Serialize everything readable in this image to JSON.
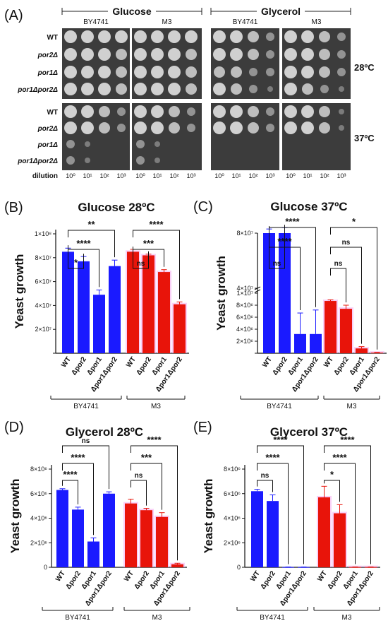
{
  "panel_a": {
    "label": "(A)",
    "medium_headers": [
      "Glucose",
      "Glycerol"
    ],
    "strain_headers": [
      "BY4741",
      "M3",
      "BY4741",
      "M3"
    ],
    "row_labels": [
      [
        "WT",
        false
      ],
      [
        "por2Δ",
        true
      ],
      [
        "por1Δ",
        true
      ],
      [
        "por1Δpor2Δ",
        true
      ],
      [
        "WT",
        false
      ],
      [
        "por2Δ",
        true
      ],
      [
        "por1Δ",
        true
      ],
      [
        "por1Δpor2Δ",
        true
      ]
    ],
    "temp_labels": [
      "28ºC",
      "37ºC"
    ],
    "dilution_label": "dilution",
    "dilutions": [
      "10⁰",
      "10¹",
      "10²",
      "10³"
    ],
    "growth_28": [
      [
        4,
        4,
        4,
        4,
        4,
        4,
        4,
        4,
        4,
        4,
        3,
        2,
        4,
        4,
        3,
        2
      ],
      [
        4,
        4,
        4,
        3,
        4,
        4,
        4,
        3,
        4,
        4,
        3,
        2,
        4,
        4,
        3,
        2
      ],
      [
        4,
        4,
        4,
        3,
        4,
        4,
        4,
        3,
        3,
        3,
        2,
        2,
        4,
        4,
        3,
        2
      ],
      [
        4,
        4,
        4,
        3,
        4,
        4,
        4,
        3,
        4,
        3,
        2,
        1,
        4,
        3,
        2,
        1
      ]
    ],
    "growth_37": [
      [
        4,
        4,
        3,
        2,
        4,
        4,
        3,
        2,
        4,
        4,
        3,
        2,
        4,
        4,
        3,
        1
      ],
      [
        4,
        4,
        3,
        2,
        4,
        4,
        3,
        2,
        4,
        4,
        3,
        2,
        4,
        4,
        3,
        1
      ],
      [
        2,
        1,
        0,
        0,
        2,
        1,
        0,
        0,
        0,
        0,
        0,
        0,
        0,
        0,
        0,
        0
      ],
      [
        2,
        1,
        0,
        0,
        2,
        1,
        0,
        0,
        0,
        0,
        0,
        0,
        0,
        0,
        0,
        0
      ]
    ]
  },
  "colors": {
    "by4741": "#1a1aff",
    "m3": "#e8140a",
    "m3_halo": "#f4a9f0",
    "star": "#111111"
  },
  "chart_data": [
    {
      "panel": "(B)",
      "type": "bar",
      "title": "Glucose 28ºC",
      "ylabel": "Yeast growth",
      "ylim": [
        0,
        100000000
      ],
      "yticks": [
        [
          "2×10⁷",
          20000000
        ],
        [
          "4×10⁷",
          40000000
        ],
        [
          "6×10⁷",
          60000000
        ],
        [
          "8×10⁷",
          80000000
        ],
        [
          "1×10⁸",
          100000000
        ]
      ],
      "categories": [
        "WT",
        "Δpor2",
        "Δpor1",
        "Δpor1Δpor2"
      ],
      "groups": [
        "BY4741",
        "M3"
      ],
      "series": [
        {
          "name": "BY4741",
          "values": [
            85000000,
            77000000,
            49000000,
            73000000
          ],
          "errors": [
            3000000,
            4000000,
            4000000,
            5000000
          ]
        },
        {
          "name": "M3",
          "values": [
            85000000,
            82000000,
            68000000,
            41000000
          ],
          "errors": [
            2000000,
            1000000,
            2000000,
            2000000
          ]
        }
      ],
      "comparisons": [
        {
          "group": 0,
          "to": 1,
          "label": "*"
        },
        {
          "group": 0,
          "to": 2,
          "label": "****"
        },
        {
          "group": 0,
          "to": 3,
          "label": "**"
        },
        {
          "group": 1,
          "to": 1,
          "label": "ns"
        },
        {
          "group": 1,
          "to": 2,
          "label": "***"
        },
        {
          "group": 1,
          "to": 3,
          "label": "****"
        }
      ]
    },
    {
      "panel": "(C)",
      "type": "bar",
      "title": "Glucose 37ºC",
      "ylabel": "Yeast growth",
      "ylim": [
        0,
        80000000
      ],
      "axis_break": {
        "low": [
          0,
          10000000
        ],
        "high": [
          40000000,
          80000000
        ]
      },
      "yticks": [
        [
          "2×10⁶",
          2000000
        ],
        [
          "4×10⁶",
          4000000
        ],
        [
          "6×10⁶",
          6000000
        ],
        [
          "8×10⁶",
          8000000
        ],
        [
          "1×10⁷",
          10000000
        ],
        [
          "4×10⁷",
          40000000
        ],
        [
          "8×10⁷",
          80000000
        ]
      ],
      "categories": [
        "WT",
        "Δpor2",
        "Δpor1",
        "Δpor1Δpor2"
      ],
      "groups": [
        "BY4741",
        "M3"
      ],
      "series": [
        {
          "name": "BY4741",
          "values": [
            80000000,
            80000000,
            3200000,
            3200000
          ],
          "errors": [
            3000000,
            4000000,
            3500000,
            4000000
          ]
        },
        {
          "name": "M3",
          "values": [
            8700000,
            7400000,
            800000,
            100000
          ],
          "errors": [
            200000,
            600000,
            300000,
            50000
          ]
        }
      ],
      "comparisons": [
        {
          "group": 0,
          "to": 1,
          "label": "ns"
        },
        {
          "group": 0,
          "to": 2,
          "label": "****"
        },
        {
          "group": 0,
          "to": 3,
          "label": "****"
        },
        {
          "group": 1,
          "to": 1,
          "label": "ns"
        },
        {
          "group": 1,
          "to": 2,
          "label": "ns"
        },
        {
          "group": 1,
          "to": 3,
          "label": "*"
        }
      ]
    },
    {
      "panel": "(D)",
      "type": "bar",
      "title": "Glycerol 28ºC",
      "ylabel": "Yeast growth",
      "ylim": [
        0,
        8000000
      ],
      "yticks": [
        [
          "0",
          0
        ],
        [
          "2×10⁶",
          2000000
        ],
        [
          "4×10⁶",
          4000000
        ],
        [
          "6×10⁶",
          6000000
        ],
        [
          "8×10⁶",
          8000000
        ]
      ],
      "categories": [
        "WT",
        "Δpor2",
        "Δpor1",
        "Δpor1Δpor2"
      ],
      "groups": [
        "BY4741",
        "M3"
      ],
      "series": [
        {
          "name": "BY4741",
          "values": [
            6300000,
            4700000,
            2100000,
            6000000
          ],
          "errors": [
            100000,
            200000,
            300000,
            150000
          ]
        },
        {
          "name": "M3",
          "values": [
            5200000,
            4650000,
            4100000,
            250000
          ],
          "errors": [
            350000,
            150000,
            350000,
            80000
          ]
        }
      ],
      "comparisons": [
        {
          "group": 0,
          "to": 1,
          "label": "****"
        },
        {
          "group": 0,
          "to": 2,
          "label": "****"
        },
        {
          "group": 0,
          "to": 3,
          "label": "ns"
        },
        {
          "group": 1,
          "to": 1,
          "label": "ns"
        },
        {
          "group": 1,
          "to": 2,
          "label": "***"
        },
        {
          "group": 1,
          "to": 3,
          "label": "****"
        }
      ]
    },
    {
      "panel": "(E)",
      "type": "bar",
      "title": "Glycerol 37ºC",
      "ylabel": "Yeast growth",
      "ylim": [
        0,
        8000000
      ],
      "yticks": [
        [
          "0",
          0
        ],
        [
          "2×10⁶",
          2000000
        ],
        [
          "4×10⁶",
          4000000
        ],
        [
          "6×10⁶",
          6000000
        ],
        [
          "8×10⁶",
          8000000
        ]
      ],
      "categories": [
        "WT",
        "Δpor2",
        "Δpor1",
        "Δpor1Δpor2"
      ],
      "groups": [
        "BY4741",
        "M3"
      ],
      "series": [
        {
          "name": "BY4741",
          "values": [
            6200000,
            5400000,
            20000,
            20000
          ],
          "errors": [
            150000,
            500000,
            10000,
            10000
          ]
        },
        {
          "name": "M3",
          "values": [
            5700000,
            4400000,
            20000,
            20000
          ],
          "errors": [
            900000,
            700000,
            10000,
            10000
          ]
        }
      ],
      "comparisons": [
        {
          "group": 0,
          "to": 1,
          "label": "ns"
        },
        {
          "group": 0,
          "to": 2,
          "label": "****"
        },
        {
          "group": 0,
          "to": 3,
          "label": "****"
        },
        {
          "group": 1,
          "to": 1,
          "label": "*"
        },
        {
          "group": 1,
          "to": 2,
          "label": "****"
        },
        {
          "group": 1,
          "to": 3,
          "label": "****"
        }
      ]
    }
  ]
}
